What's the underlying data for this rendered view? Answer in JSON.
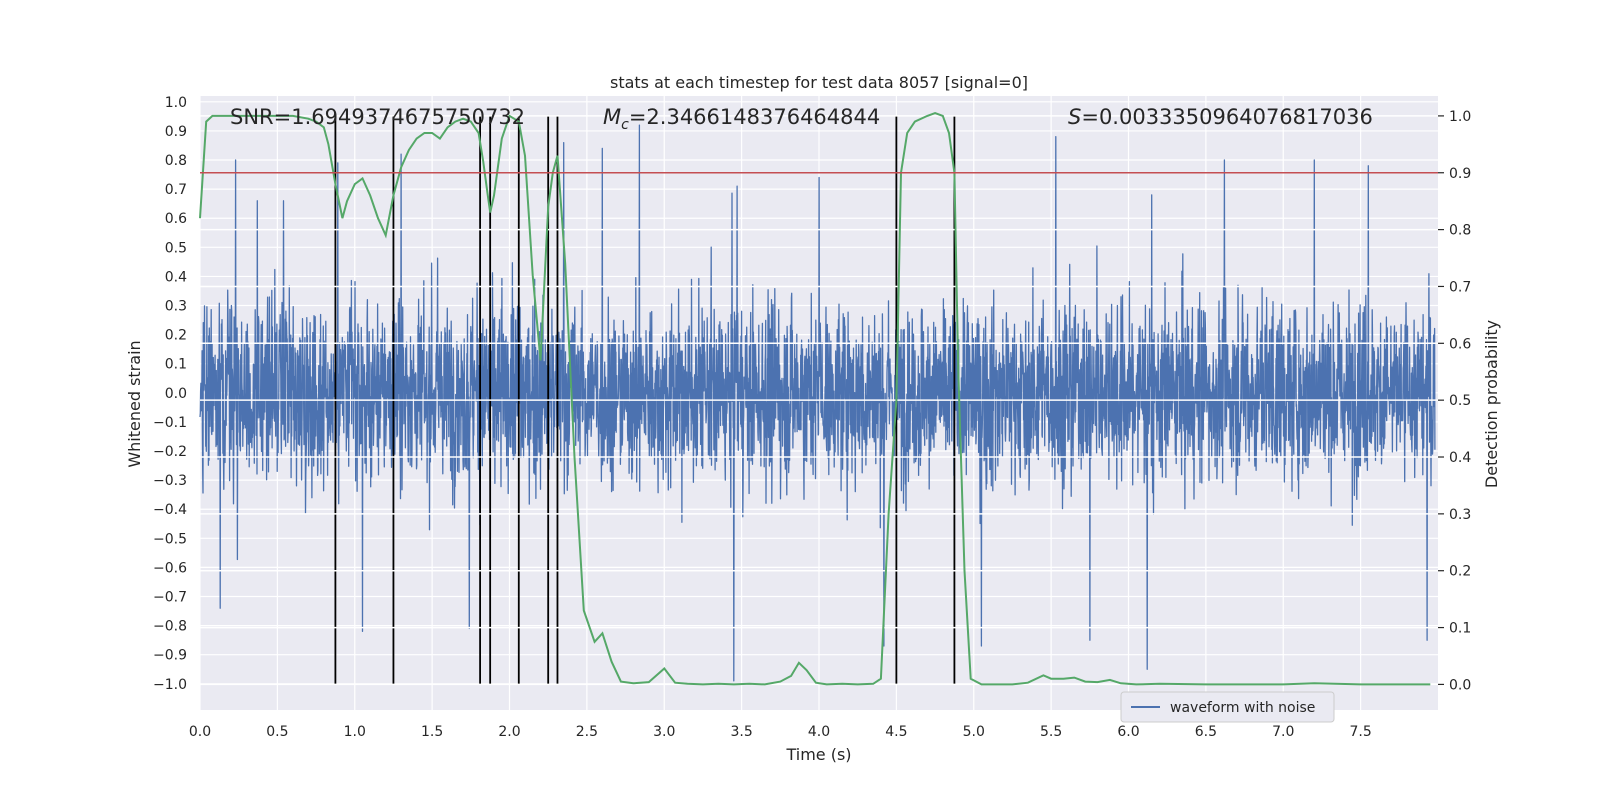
{
  "chart_data": {
    "type": "line",
    "title": "stats at each timestep for test data 8057 [signal=0]",
    "xlabel": "Time (s)",
    "ylabel_left": "Whitened strain",
    "ylabel_right": "Detection probability",
    "xlim": [
      0.0,
      8.0
    ],
    "ylim_left": [
      -1.09,
      1.02
    ],
    "ylim_right": [
      -0.045,
      1.035
    ],
    "x_ticks": [
      "0.0",
      "0.5",
      "1.0",
      "1.5",
      "2.0",
      "2.5",
      "3.0",
      "3.5",
      "4.0",
      "4.5",
      "5.0",
      "5.5",
      "6.0",
      "6.5",
      "7.0",
      "7.5"
    ],
    "y_left_ticks": [
      "1.0",
      "0.9",
      "0.8",
      "0.7",
      "0.6",
      "0.5",
      "0.4",
      "0.3",
      "0.2",
      "0.1",
      "0.0",
      "−0.1",
      "−0.2",
      "−0.3",
      "−0.4",
      "−0.5",
      "−0.6",
      "−0.7",
      "−0.8",
      "−0.9",
      "−1.0"
    ],
    "y_right_ticks": [
      "1.0",
      "0.9",
      "0.8",
      "0.7",
      "0.6",
      "0.5",
      "0.4",
      "0.3",
      "0.2",
      "0.1",
      "0.0"
    ],
    "grid": true,
    "legend_position": "bottom-right",
    "annotations": {
      "snr": "SNR=1.6949374675750732",
      "mc_symbol": "M",
      "mc_sub": "c",
      "mc_value": "=2.3466148376464844",
      "s_symbol": "S",
      "s_value": "=0.0033350964076817036"
    },
    "threshold": 0.9,
    "event_lines_x": [
      0.875,
      1.25,
      1.81,
      1.875,
      2.06,
      2.25,
      2.31,
      4.5,
      4.875
    ],
    "series": [
      {
        "name": "waveform with noise",
        "axis": "left",
        "color": "#4c72b0",
        "amplitude_envelope": 0.6,
        "peak_highlights": [
          [
            0.23,
            0.8
          ],
          [
            0.37,
            0.66
          ],
          [
            0.54,
            0.66
          ],
          [
            0.89,
            0.79
          ],
          [
            1.3,
            0.82
          ],
          [
            2.35,
            0.86
          ],
          [
            2.6,
            0.84
          ],
          [
            2.84,
            0.92
          ],
          [
            3.47,
            0.71
          ],
          [
            4.0,
            0.74
          ],
          [
            4.5,
            0.72
          ],
          [
            5.53,
            0.88
          ],
          [
            6.15,
            0.68
          ],
          [
            6.62,
            0.8
          ],
          [
            7.2,
            0.8
          ],
          [
            7.55,
            0.78
          ],
          [
            0.13,
            -0.74
          ],
          [
            1.05,
            -0.82
          ],
          [
            1.74,
            -0.81
          ],
          [
            3.45,
            -0.99
          ],
          [
            4.42,
            -0.87
          ],
          [
            5.05,
            -0.87
          ],
          [
            5.75,
            -0.85
          ],
          [
            6.12,
            -0.95
          ],
          [
            7.93,
            -0.85
          ]
        ]
      },
      {
        "axis": "right",
        "color": "#55a868",
        "x": [
          0.0,
          0.04,
          0.08,
          0.12,
          0.25,
          0.4,
          0.5,
          0.6,
          0.7,
          0.75,
          0.8,
          0.83,
          0.875,
          0.92,
          0.95,
          1.0,
          1.05,
          1.1,
          1.15,
          1.2,
          1.25,
          1.3,
          1.35,
          1.4,
          1.45,
          1.5,
          1.55,
          1.6,
          1.65,
          1.7,
          1.75,
          1.8,
          1.83,
          1.86,
          1.875,
          1.9,
          1.95,
          2.0,
          2.03,
          2.06,
          2.1,
          2.15,
          2.2,
          2.25,
          2.28,
          2.31,
          2.36,
          2.42,
          2.48,
          2.55,
          2.6,
          2.66,
          2.72,
          2.8,
          2.9,
          3.0,
          3.07,
          3.15,
          3.25,
          3.35,
          3.45,
          3.55,
          3.65,
          3.75,
          3.82,
          3.87,
          3.92,
          3.98,
          4.05,
          4.15,
          4.25,
          4.35,
          4.4,
          4.45,
          4.5,
          4.53,
          4.57,
          4.62,
          4.7,
          4.75,
          4.8,
          4.84,
          4.875,
          4.9,
          4.94,
          4.98,
          5.05,
          5.15,
          5.25,
          5.35,
          5.45,
          5.5,
          5.58,
          5.65,
          5.72,
          5.8,
          5.88,
          5.95,
          6.05,
          6.2,
          6.5,
          6.8,
          7.0,
          7.2,
          7.5,
          7.8,
          7.95
        ],
        "y": [
          0.82,
          0.99,
          1.0,
          1.0,
          1.0,
          1.0,
          1.0,
          1.0,
          0.995,
          0.99,
          0.98,
          0.95,
          0.88,
          0.82,
          0.85,
          0.88,
          0.89,
          0.86,
          0.82,
          0.79,
          0.86,
          0.91,
          0.94,
          0.96,
          0.97,
          0.97,
          0.96,
          0.98,
          0.99,
          0.995,
          0.99,
          0.97,
          0.92,
          0.86,
          0.83,
          0.86,
          0.96,
          1.0,
          0.995,
          0.99,
          0.93,
          0.72,
          0.57,
          0.84,
          0.9,
          0.93,
          0.74,
          0.4,
          0.13,
          0.075,
          0.09,
          0.04,
          0.005,
          0.002,
          0.004,
          0.028,
          0.003,
          0.001,
          0.0,
          0.001,
          0.0,
          0.001,
          0.0,
          0.005,
          0.015,
          0.038,
          0.025,
          0.003,
          0.0,
          0.001,
          0.0,
          0.001,
          0.01,
          0.3,
          0.5,
          0.9,
          0.97,
          0.99,
          1.0,
          1.005,
          1.0,
          0.97,
          0.9,
          0.55,
          0.2,
          0.01,
          0.0,
          0.0,
          0.0,
          0.003,
          0.016,
          0.01,
          0.01,
          0.012,
          0.005,
          0.004,
          0.008,
          0.002,
          0.0,
          0.001,
          0.0,
          0.0,
          0.0,
          0.002,
          0.0,
          0.0,
          0.0
        ]
      }
    ]
  }
}
